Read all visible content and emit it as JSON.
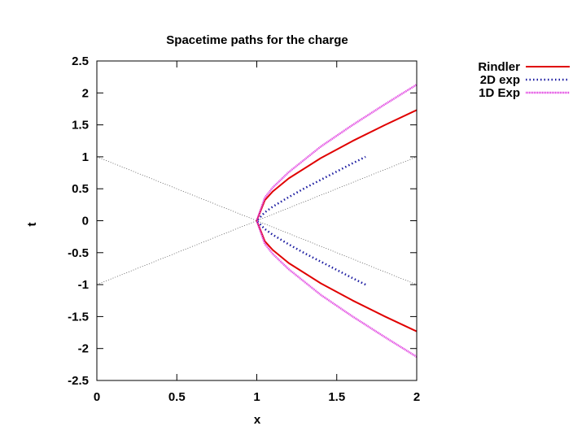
{
  "chart_data": {
    "type": "line",
    "title": "Spacetime paths for the charge",
    "xlabel": "x",
    "ylabel": "t",
    "xlim": [
      0,
      2
    ],
    "ylim": [
      -2.5,
      2.5
    ],
    "x_ticks": [
      "0",
      "0.5",
      "1",
      "1.5",
      "2"
    ],
    "y_ticks": [
      "2.5",
      "2",
      "1.5",
      "1",
      "0.5",
      "0",
      "-0.5",
      "-1",
      "-1.5",
      "-2",
      "-2.5"
    ],
    "legend_position": "outside top-right",
    "grid": false,
    "series": [
      {
        "name": "Rindler",
        "color": "#e00000",
        "style": "solid",
        "x": [
          2.0,
          1.8,
          1.6,
          1.4,
          1.2,
          1.1,
          1.05,
          1.0,
          1.05,
          1.1,
          1.2,
          1.4,
          1.6,
          1.8,
          2.0
        ],
        "y": [
          -1.732,
          -1.497,
          -1.249,
          -0.98,
          -0.663,
          -0.458,
          -0.32,
          0,
          0.32,
          0.458,
          0.663,
          0.98,
          1.249,
          1.497,
          1.732
        ]
      },
      {
        "name": "2D exp",
        "color": "#1a1aa0",
        "style": "dotted",
        "x": [
          1.68,
          1.6,
          1.5,
          1.4,
          1.3,
          1.2,
          1.1,
          1.05,
          1.0,
          1.05,
          1.1,
          1.2,
          1.3,
          1.4,
          1.5,
          1.6,
          1.68
        ],
        "y": [
          -1.0,
          -0.9,
          -0.77,
          -0.64,
          -0.51,
          -0.37,
          -0.22,
          -0.13,
          0,
          0.13,
          0.22,
          0.37,
          0.51,
          0.64,
          0.77,
          0.9,
          1.0
        ]
      },
      {
        "name": "1D Exp",
        "color": "#e040e0",
        "style": "dotted",
        "x": [
          2.0,
          1.8,
          1.6,
          1.4,
          1.2,
          1.1,
          1.05,
          1.0,
          1.05,
          1.1,
          1.2,
          1.4,
          1.6,
          1.8,
          2.0
        ],
        "y": [
          -2.13,
          -1.82,
          -1.5,
          -1.16,
          -0.76,
          -0.52,
          -0.36,
          0,
          0.36,
          0.52,
          0.76,
          1.16,
          1.5,
          1.82,
          2.13
        ]
      }
    ],
    "reference_lines": [
      {
        "x": [
          0,
          2
        ],
        "y": [
          1,
          -1
        ],
        "color": "#555555",
        "style": "dotted"
      },
      {
        "x": [
          0,
          2
        ],
        "y": [
          -1,
          1
        ],
        "color": "#555555",
        "style": "dotted"
      }
    ]
  }
}
